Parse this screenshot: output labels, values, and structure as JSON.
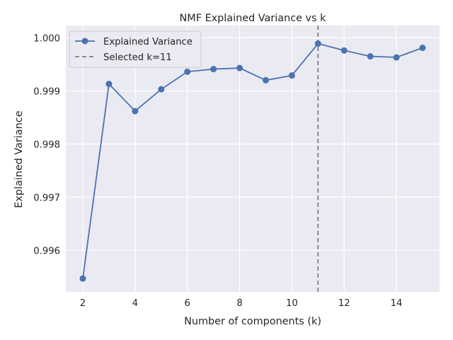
{
  "chart_data": {
    "type": "line",
    "title": "NMF Explained Variance vs k",
    "xlabel": "Number of components (k)",
    "ylabel": "Explained Variance",
    "xlim": [
      1.35,
      15.65
    ],
    "ylim": [
      0.99522,
      1.00023
    ],
    "x_ticks": [
      2,
      4,
      6,
      8,
      10,
      12,
      14
    ],
    "x_tick_labels": [
      "2",
      "4",
      "6",
      "8",
      "10",
      "12",
      "14"
    ],
    "y_ticks": [
      0.996,
      0.997,
      0.998,
      0.999,
      1.0
    ],
    "y_tick_labels": [
      "0.996",
      "0.997",
      "0.998",
      "0.999",
      "1.000"
    ],
    "grid": true,
    "legend_position": "top-left",
    "series": [
      {
        "name": "Explained Variance",
        "color": "#4c72b0",
        "marker": "circle",
        "x": [
          2,
          3,
          4,
          5,
          6,
          7,
          8,
          9,
          10,
          11,
          12,
          13,
          14,
          15
        ],
        "y": [
          0.99547,
          0.99913,
          0.99862,
          0.99903,
          0.99936,
          0.99941,
          0.99943,
          0.9992,
          0.99929,
          0.99989,
          0.99976,
          0.99965,
          0.99963,
          0.99981
        ]
      }
    ],
    "reference_lines": [
      {
        "orientation": "vertical",
        "x": 11,
        "style": "dashed",
        "color": "#808080",
        "name": "Selected k=11"
      }
    ]
  }
}
